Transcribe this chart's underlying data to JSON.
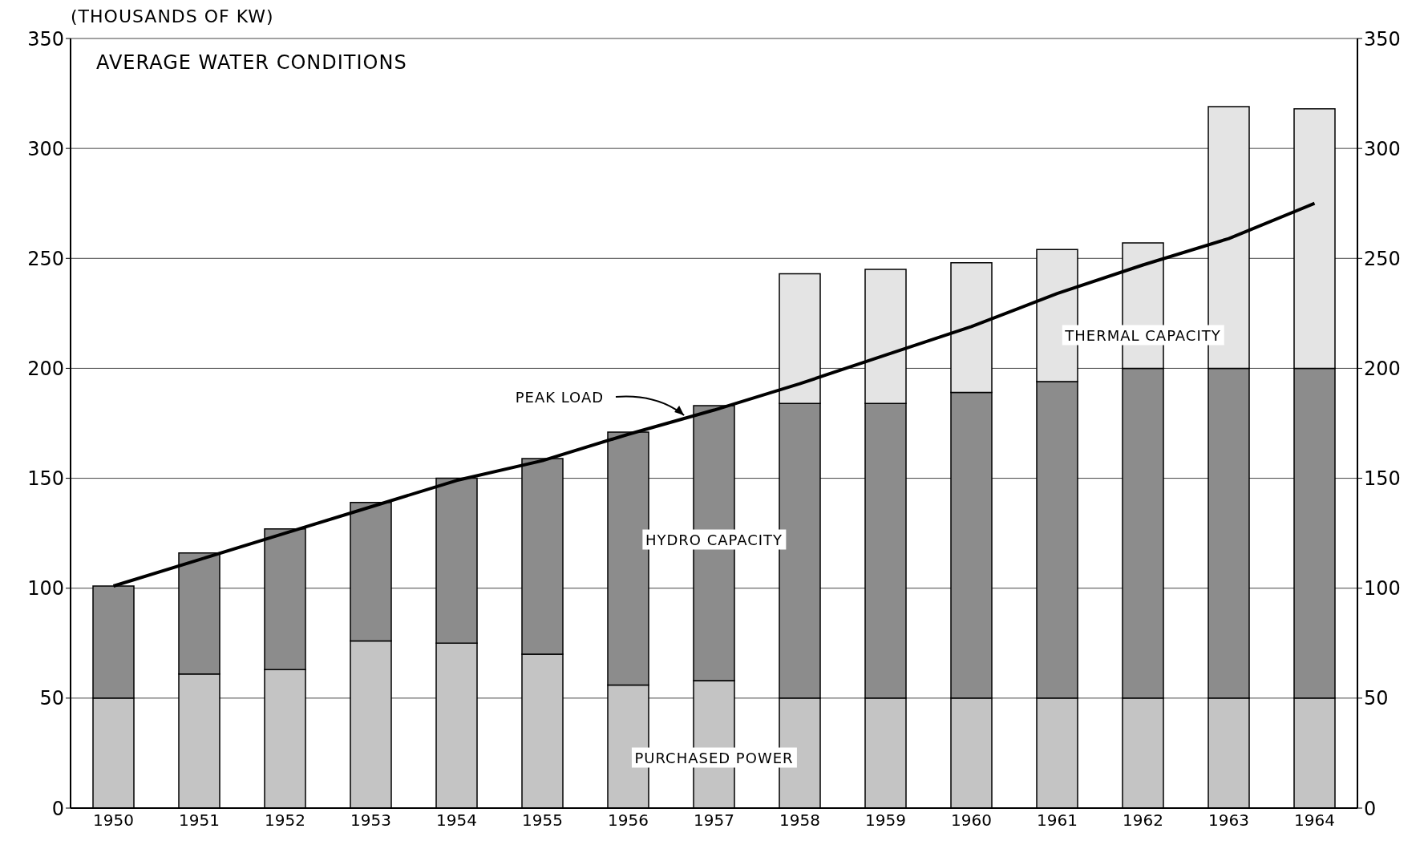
{
  "chart_data": {
    "type": "bar",
    "title": "AVERAGE WATER CONDITIONS",
    "ylabel": "(THOUSANDS OF KW)",
    "categories": [
      "1950",
      "1951",
      "1952",
      "1953",
      "1954",
      "1955",
      "1956",
      "1957",
      "1958",
      "1959",
      "1960",
      "1961",
      "1962",
      "1963",
      "1964"
    ],
    "stacked": true,
    "series": [
      {
        "name": "PURCHASED POWER",
        "color": "#c4c4c4",
        "values": [
          50,
          61,
          63,
          76,
          75,
          70,
          56,
          58,
          50,
          50,
          50,
          50,
          50,
          50,
          50
        ]
      },
      {
        "name": "HYDRO CAPACITY",
        "color": "#8c8c8c",
        "values": [
          51,
          55,
          64,
          63,
          75,
          89,
          115,
          125,
          134,
          134,
          139,
          144,
          150,
          150,
          150
        ]
      },
      {
        "name": "THERMAL CAPACITY",
        "color": "#e4e4e4",
        "values": [
          null,
          null,
          null,
          null,
          null,
          null,
          null,
          null,
          59,
          61,
          59,
          60,
          57,
          119,
          118
        ]
      },
      {
        "name": "PEAK LOAD",
        "type": "line",
        "color": "#000000",
        "values": [
          101,
          113,
          125,
          137,
          149,
          158,
          170,
          181,
          193,
          206,
          219,
          234,
          247,
          259,
          275
        ]
      }
    ],
    "ylim": [
      0,
      350
    ],
    "yticks": [
      0,
      50,
      100,
      150,
      200,
      250,
      300,
      350
    ],
    "y2lim": [
      0,
      350
    ],
    "y2ticks": [
      0,
      50,
      100,
      150,
      200,
      250,
      300,
      350
    ],
    "grid": "y",
    "marker": "none"
  }
}
